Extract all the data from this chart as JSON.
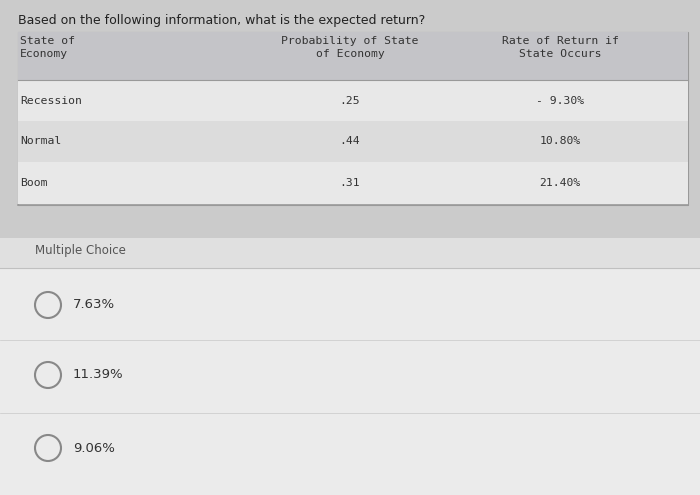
{
  "question": "Based on the following information, what is the expected return?",
  "col1_header": "State of\nEconomy",
  "col2_header": "Probability of State\nof Economy",
  "col3_header": "Rate of Return if\nState Occurs",
  "table_col1": [
    "Recession",
    "Normal",
    "Boom"
  ],
  "table_col2": [
    ".25",
    ".44",
    ".31"
  ],
  "table_col3": [
    "- 9.30%",
    "10.80%",
    "21.40%"
  ],
  "mc_label": "Multiple Choice",
  "choices": [
    "7.63%",
    "11.39%",
    "9.06%"
  ],
  "outer_bg": "#cbcbcb",
  "table_outer_bg": "#e8e8e8",
  "header_bg": "#c4c4c8",
  "row_bg_even": "#e8e8e8",
  "row_bg_odd": "#dcdcdc",
  "mc_section_bg": "#e0e0e0",
  "mc_inner_bg": "#ebebeb",
  "question_color": "#222222",
  "text_color": "#333333",
  "choice_color": "#333333",
  "border_color": "#999999",
  "mono_font": "monospace",
  "sans_font": "sans-serif",
  "question_fontsize": 9.0,
  "table_fontsize": 8.2,
  "mc_label_fontsize": 8.5,
  "choice_fontsize": 9.5
}
